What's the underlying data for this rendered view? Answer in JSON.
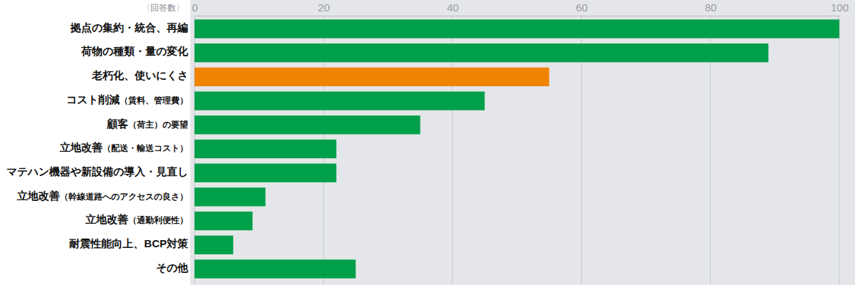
{
  "chart_data": {
    "type": "bar",
    "orientation": "horizontal",
    "xlabel": "〈回答数〉",
    "categories": [
      "拠点の集約・統合、再編",
      "荷物の種類・量の変化",
      "老朽化、使いにくさ",
      "コスト削減（賃料、管理費）",
      "顧客（荷主）の要望",
      "立地改善（配送・輸送コスト）",
      "マテハン機器や新設備の導入・見直し",
      "立地改善（幹線道路へのアクセスの良さ）",
      "立地改善（通勤利便性）",
      "耐震性能向上、BCP対策",
      "その他"
    ],
    "values": [
      100,
      89,
      55,
      45,
      35,
      22,
      22,
      11,
      9,
      6,
      25
    ],
    "colors": [
      "#00a04a",
      "#00a04a",
      "#f08300",
      "#00a04a",
      "#00a04a",
      "#00a04a",
      "#00a04a",
      "#00a04a",
      "#00a04a",
      "#00a04a",
      "#00a04a"
    ],
    "xlim": [
      0,
      100
    ],
    "xticks": [
      0,
      20,
      40,
      60,
      80,
      100
    ],
    "grid": true
  }
}
